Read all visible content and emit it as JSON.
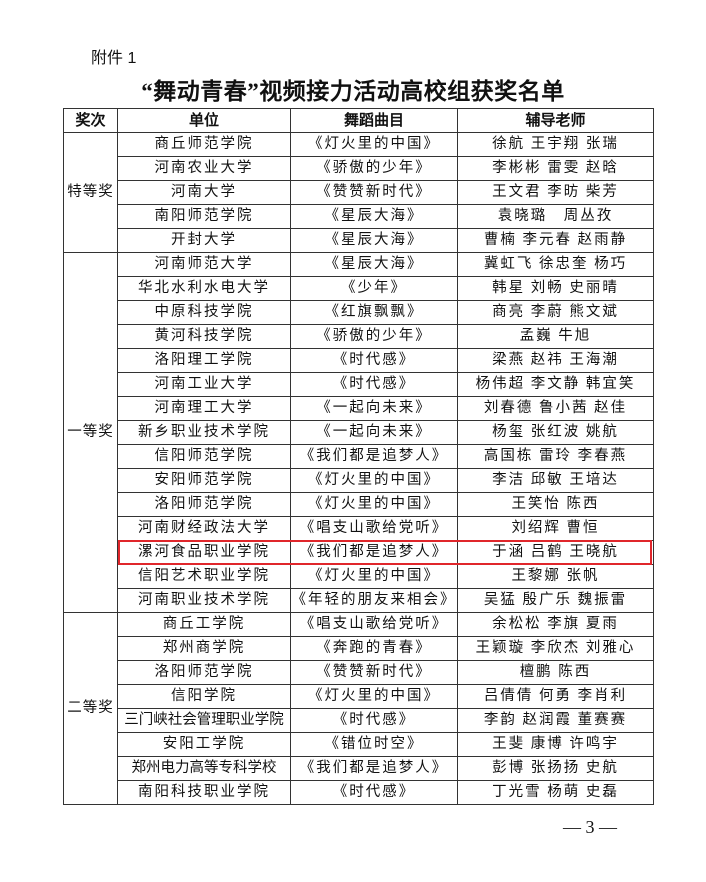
{
  "attachment_label": "附件 1",
  "title": "“舞动青春”视频接力活动高校组获奖名单",
  "table": {
    "headers": [
      "奖次",
      "单位",
      "舞蹈曲目",
      "辅导老师"
    ],
    "groups": [
      {
        "award": "特等奖",
        "rows": [
          [
            "商丘师范学院",
            "《灯火里的中国》",
            "徐航 王宇翔 张瑞"
          ],
          [
            "河南农业大学",
            "《骄傲的少年》",
            "李彬彬 雷雯 赵晗"
          ],
          [
            "河南大学",
            "《赞赞新时代》",
            "王文君 李昉 柴芳"
          ],
          [
            "南阳师范学院",
            "《星辰大海》",
            "袁晓璐　周丛孜"
          ],
          [
            "开封大学",
            "《星辰大海》",
            "曹楠 李元春 赵雨静"
          ]
        ]
      },
      {
        "award": "一等奖",
        "rows": [
          [
            "河南师范大学",
            "《星辰大海》",
            "冀虹飞 徐忠奎 杨巧"
          ],
          [
            "华北水利水电大学",
            "《少年》",
            "韩星 刘畅 史丽晴"
          ],
          [
            "中原科技学院",
            "《红旗飘飘》",
            "商亮 李蔚 熊文斌"
          ],
          [
            "黄河科技学院",
            "《骄傲的少年》",
            "孟巍 牛旭"
          ],
          [
            "洛阳理工学院",
            "《时代感》",
            "梁燕 赵祎 王海潮"
          ],
          [
            "河南工业大学",
            "《时代感》",
            "杨伟超 李文静 韩宜笑"
          ],
          [
            "河南理工大学",
            "《一起向未来》",
            "刘春德 鲁小茜 赵佳"
          ],
          [
            "新乡职业技术学院",
            "《一起向未来》",
            "杨玺 张红波 姚航"
          ],
          [
            "信阳师范学院",
            "《我们都是追梦人》",
            "高国栋 雷玲 李春燕"
          ],
          [
            "安阳师范学院",
            "《灯火里的中国》",
            "李洁 邱敏 王培达"
          ],
          [
            "洛阳师范学院",
            "《灯火里的中国》",
            "王笑怡 陈西"
          ],
          [
            "河南财经政法大学",
            "《唱支山歌给党听》",
            "刘绍辉 曹恒"
          ],
          [
            "漯河食品职业学院",
            "《我们都是追梦人》",
            "于涵 吕鹤 王晓航"
          ],
          [
            "信阳艺术职业学院",
            "《灯火里的中国》",
            "王黎娜 张帆"
          ],
          [
            "河南职业技术学院",
            "《年轻的朋友来相会》",
            "吴猛 殷广乐 魏振雷"
          ]
        ]
      },
      {
        "award": "二等奖",
        "rows": [
          [
            "商丘工学院",
            "《唱支山歌给党听》",
            "余松松 李旗 夏雨"
          ],
          [
            "郑州商学院",
            "《奔跑的青春》",
            "王颖璇 李欣杰 刘雅心"
          ],
          [
            "洛阳师范学院",
            "《赞赞新时代》",
            "檀鹏 陈西"
          ],
          [
            "信阳学院",
            "《灯火里的中国》",
            "吕倩倩 何勇 李肖利"
          ],
          [
            "三门峡社会管理职业学院",
            "《时代感》",
            "李韵 赵润霞 董赛赛"
          ],
          [
            "安阳工学院",
            "《错位时空》",
            "王斐 康博 许鸣宇"
          ],
          [
            "郑州电力高等专科学校",
            "《我们都是追梦人》",
            "彭博 张扬扬 史航"
          ],
          [
            "南阳科技职业学院",
            "《时代感》",
            "丁光雪 杨萌 史磊"
          ]
        ]
      }
    ],
    "highlighted_row": {
      "group": 1,
      "row": 12,
      "color": "#e0262b"
    }
  },
  "page_number": "— 3 —"
}
